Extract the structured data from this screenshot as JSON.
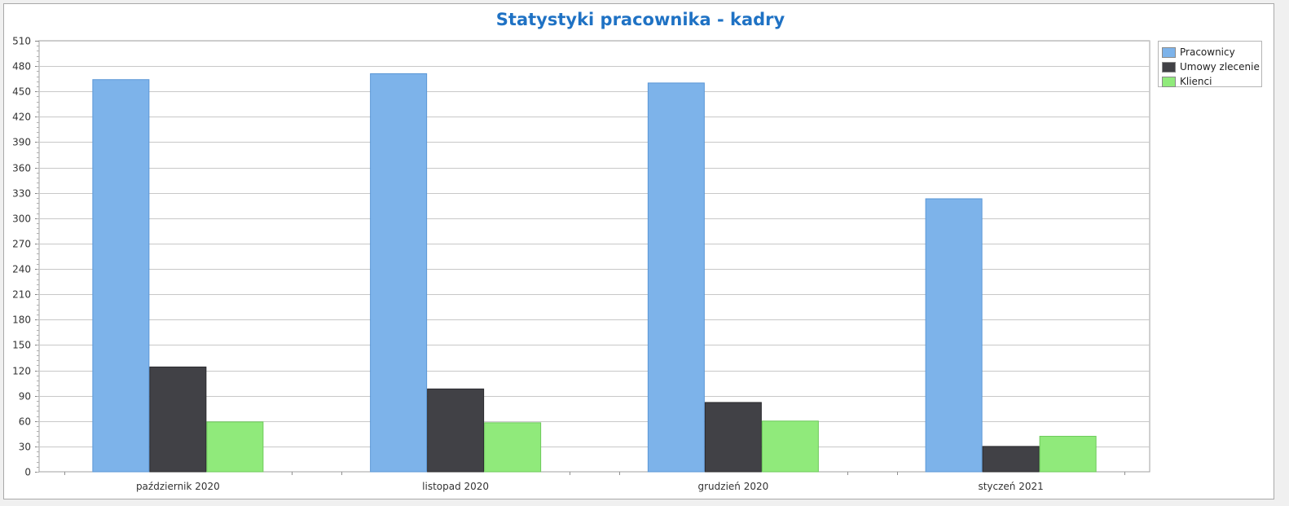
{
  "chart_data": {
    "type": "bar",
    "title": "Statystyki pracownika - kadry",
    "categories": [
      "październik 2020",
      "listopad 2020",
      "grudzień 2020",
      "styczeń 2021"
    ],
    "series": [
      {
        "name": "Pracownicy",
        "values": [
          464,
          471,
          460,
          323
        ],
        "color": "#7db3ea"
      },
      {
        "name": "Umowy zlecenie",
        "values": [
          124,
          98,
          82,
          30
        ],
        "color": "#414146"
      },
      {
        "name": "Klienci",
        "values": [
          59,
          58,
          60,
          42
        ],
        "color": "#90ea7b"
      }
    ],
    "ylim": [
      0,
      510
    ],
    "yticks": [
      "0",
      "30",
      "60",
      "90",
      "120",
      "150",
      "180",
      "210",
      "240",
      "270",
      "300",
      "330",
      "360",
      "390",
      "420",
      "450",
      "480",
      "510"
    ],
    "grid": true,
    "legend_position": "top-right outside"
  }
}
